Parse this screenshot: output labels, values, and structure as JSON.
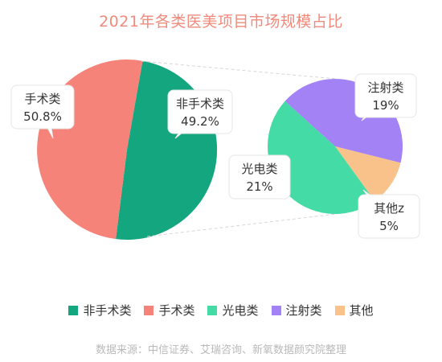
{
  "title": "2021年各类医美项目市场规模占比",
  "source": "数据来源：中信证券、艾瑞咨询、新氧数据颜究院整理",
  "colors": {
    "non_surgical": "#13a67f",
    "surgical": "#f5837a",
    "photoelectric": "#44dba6",
    "injection": "#a282f5",
    "other": "#f8c28a"
  },
  "chart_data": [
    {
      "type": "pie",
      "slices": [
        {
          "label": "非手术类",
          "value": 49.2,
          "value_label": "49.2%",
          "color_key": "non_surgical"
        },
        {
          "label": "手术类",
          "value": 50.8,
          "value_label": "50.8%",
          "color_key": "surgical"
        }
      ]
    },
    {
      "type": "pie",
      "slices": [
        {
          "label": "注射类",
          "value": 19,
          "value_label": "19%",
          "color_key": "injection"
        },
        {
          "label": "其他z",
          "value": 5,
          "value_label": "5%",
          "color_key": "other"
        },
        {
          "label": "光电类",
          "value": 21,
          "value_label": "21%",
          "color_key": "photoelectric"
        }
      ]
    }
  ],
  "legend": [
    {
      "label": "非手术类",
      "color_key": "non_surgical"
    },
    {
      "label": "手术类",
      "color_key": "surgical"
    },
    {
      "label": "光电类",
      "color_key": "photoelectric"
    },
    {
      "label": "注射类",
      "color_key": "injection"
    },
    {
      "label": "其他",
      "color_key": "other"
    }
  ]
}
